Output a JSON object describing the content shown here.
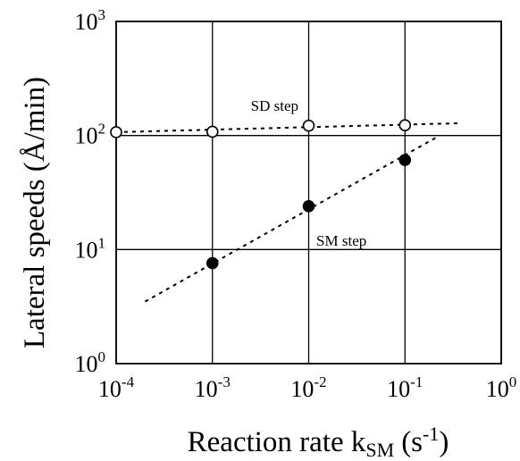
{
  "chart_data": {
    "type": "scatter",
    "title": "",
    "xlabel": "Reaction rate k",
    "xlabel_sub": "SM",
    "xlabel_unit": "(s",
    "xlabel_unit_sup": "-1",
    "xlabel_unit_end": ")",
    "ylabel": "Lateral speeds (Å/min)",
    "x_scale": "log",
    "y_scale": "log",
    "xlim": [
      0.0001,
      1
    ],
    "ylim": [
      1,
      1000
    ],
    "grid": true,
    "x_ticks": [
      {
        "value": 0.0001,
        "base": "10",
        "exp": "-4"
      },
      {
        "value": 0.001,
        "base": "10",
        "exp": "-3"
      },
      {
        "value": 0.01,
        "base": "10",
        "exp": "-2"
      },
      {
        "value": 0.1,
        "base": "10",
        "exp": "-1"
      },
      {
        "value": 1,
        "base": "10",
        "exp": "0"
      }
    ],
    "y_ticks": [
      {
        "value": 1,
        "base": "10",
        "exp": "0"
      },
      {
        "value": 10,
        "base": "10",
        "exp": "1"
      },
      {
        "value": 100,
        "base": "10",
        "exp": "2"
      },
      {
        "value": 1000,
        "base": "10",
        "exp": "3"
      }
    ],
    "series": [
      {
        "marker": "open-circle",
        "points": [
          [
            0.0001,
            107
          ],
          [
            0.001,
            108
          ],
          [
            0.01,
            122
          ],
          [
            0.1,
            123
          ]
        ],
        "fit_line": [
          [
            0.0001,
            107
          ],
          [
            0.35,
            128
          ]
        ]
      },
      {
        "marker": "filled-circle",
        "points": [
          [
            0.001,
            7.6
          ],
          [
            0.01,
            24
          ],
          [
            0.1,
            61
          ]
        ],
        "fit_line": [
          [
            0.0002,
            3.5
          ],
          [
            0.22,
            98
          ]
        ]
      }
    ],
    "annotations": [
      {
        "text": "SD step",
        "x": 0.0025,
        "y": 165
      },
      {
        "text": "SM step",
        "x": 0.012,
        "y": 10.8
      }
    ]
  }
}
